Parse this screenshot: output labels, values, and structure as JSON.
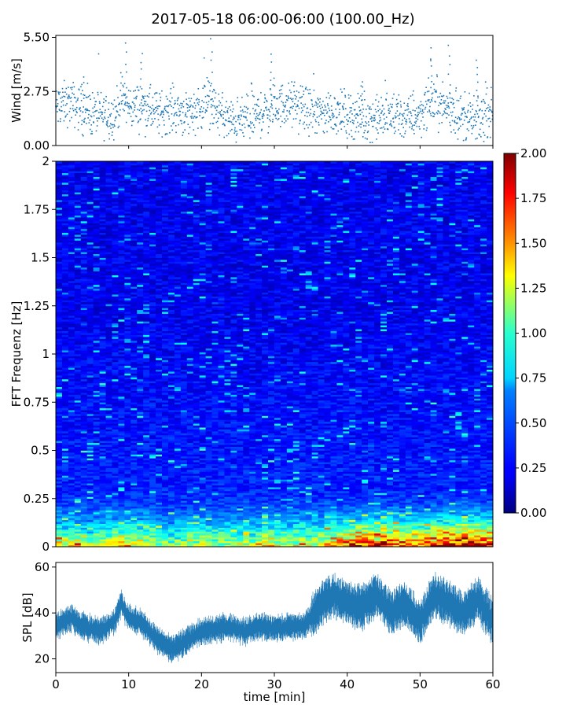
{
  "title": "2017-05-18 06:00-06:00 (100.00_Hz)",
  "chart_data": [
    {
      "type": "scatter",
      "name": "wind-panel",
      "ylabel": "Wind [m/s]",
      "yticks": [
        "0.00",
        "2.75",
        "5.50"
      ],
      "ylim": [
        0,
        5.6
      ],
      "xlim": [
        0,
        60
      ],
      "color": "#1f77b4",
      "series": [
        {
          "x": [
            0,
            2,
            4,
            6,
            8,
            9,
            10,
            12,
            14,
            16,
            18,
            20,
            21,
            22,
            24,
            26,
            28,
            30,
            32,
            34,
            36,
            38,
            40,
            42,
            44,
            46,
            48,
            50,
            51,
            52,
            53,
            54,
            56,
            58,
            59,
            60
          ],
          "y": [
            1.9,
            2.2,
            1.7,
            1.6,
            1.5,
            2.4,
            2.0,
            2.0,
            1.6,
            1.9,
            1.6,
            2.0,
            2.2,
            1.8,
            1.2,
            1.3,
            1.6,
            2.0,
            2.1,
            1.9,
            1.6,
            1.7,
            1.6,
            1.4,
            1.4,
            1.5,
            1.4,
            1.6,
            2.1,
            2.3,
            2.0,
            1.9,
            1.4,
            1.2,
            1.6,
            1.7
          ]
        }
      ],
      "peaks": [
        {
          "x": 9.6,
          "y": 5.3
        },
        {
          "x": 11.8,
          "y": 4.8
        },
        {
          "x": 21.4,
          "y": 5.45
        },
        {
          "x": 29.6,
          "y": 4.7
        },
        {
          "x": 51.5,
          "y": 5.0
        },
        {
          "x": 54.0,
          "y": 5.1
        },
        {
          "x": 57.8,
          "y": 4.4
        },
        {
          "x": 3.7,
          "y": 3.6
        },
        {
          "x": 42.0,
          "y": 3.4
        }
      ]
    },
    {
      "type": "heatmap",
      "name": "fft-spectrogram",
      "ylabel": "FFT Frequenz [Hz]",
      "yticks": [
        "0",
        "0.25",
        "0.5",
        "0.75",
        "1",
        "1.25",
        "1.5",
        "1.75",
        "2"
      ],
      "ylim": [
        0,
        2
      ],
      "xlim": [
        0,
        60
      ],
      "colormap": "jet",
      "colorbar": {
        "range": [
          0,
          2
        ],
        "ticks": [
          "0.00",
          "0.25",
          "0.50",
          "0.75",
          "1.00",
          "1.25",
          "1.50",
          "1.75",
          "2.00"
        ]
      },
      "profile_time": [
        0,
        5,
        10,
        15,
        20,
        25,
        30,
        35,
        40,
        45,
        50,
        55,
        60
      ],
      "low_freq_intensity": [
        1.1,
        0.9,
        1.3,
        0.8,
        1.0,
        0.9,
        1.1,
        1.0,
        1.6,
        1.7,
        1.4,
        1.9,
        1.8
      ]
    },
    {
      "type": "area",
      "name": "spl-panel",
      "ylabel": "SPL [dB]",
      "xlabel": "time [min]",
      "yticks": [
        "20",
        "40",
        "60"
      ],
      "xticks": [
        "0",
        "10",
        "20",
        "30",
        "40",
        "50",
        "60"
      ],
      "ylim": [
        14,
        62
      ],
      "xlim": [
        0,
        60
      ],
      "color": "#1f77b4",
      "series": [
        {
          "x": [
            0,
            2,
            4,
            6,
            8,
            9,
            10,
            12,
            14,
            16,
            18,
            20,
            22,
            24,
            26,
            28,
            30,
            32,
            34,
            35,
            36,
            38,
            40,
            42,
            44,
            46,
            48,
            50,
            52,
            54,
            56,
            58,
            60
          ],
          "y": [
            34,
            38,
            34,
            32,
            36,
            44,
            38,
            35,
            28,
            24,
            28,
            32,
            33,
            34,
            32,
            34,
            33,
            34,
            34,
            38,
            42,
            48,
            44,
            42,
            48,
            40,
            44,
            36,
            48,
            44,
            40,
            46,
            36
          ]
        }
      ]
    }
  ]
}
